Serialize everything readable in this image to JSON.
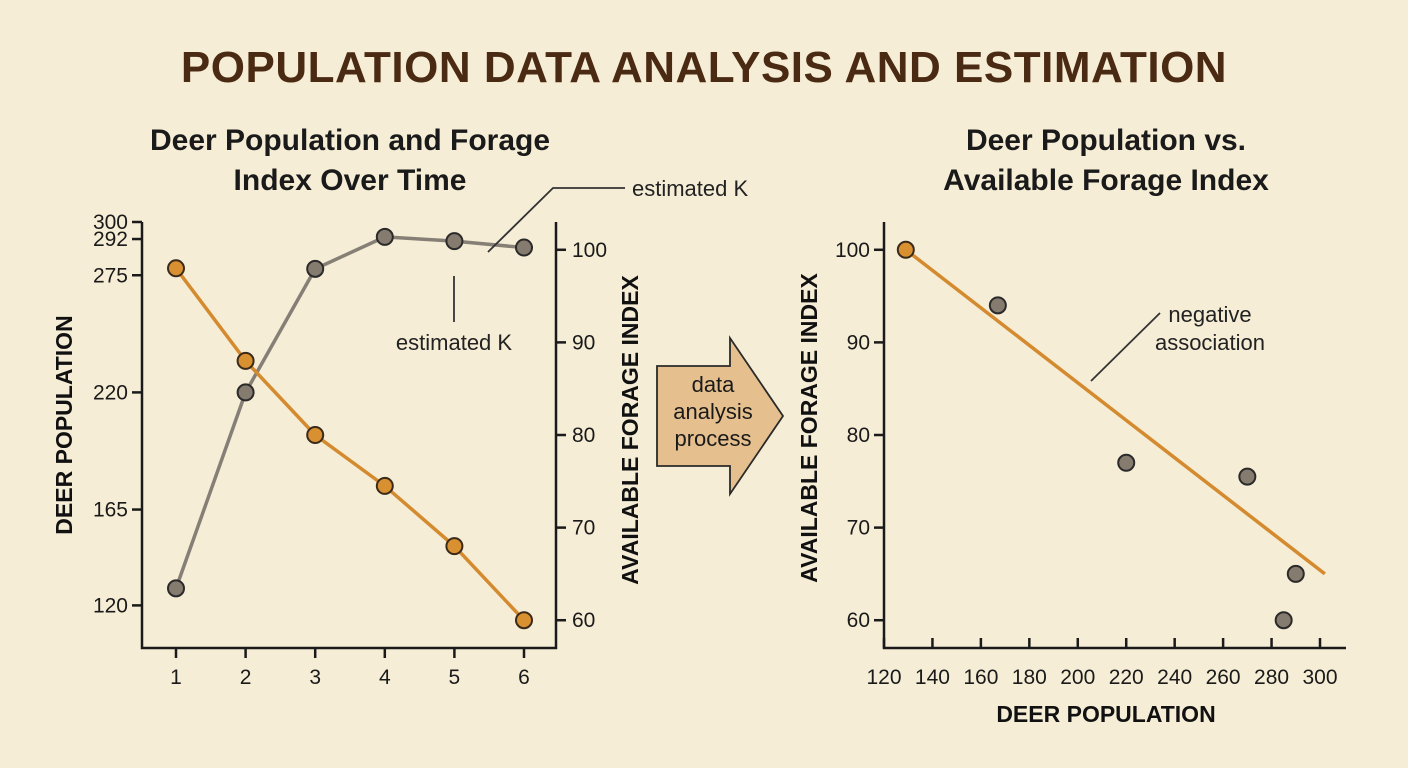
{
  "title": "POPULATION DATA ANALYSIS AND ESTIMATION",
  "arrow": {
    "lines": [
      "data",
      "analysis",
      "process"
    ]
  },
  "chart_data": [
    {
      "type": "line",
      "title": [
        "Deer Population and Forage",
        "Index Over Time"
      ],
      "xlabel": "",
      "categories": [
        1,
        2,
        3,
        4,
        5,
        6
      ],
      "y_left": {
        "label": "DEER POPULATION",
        "ticks": [
          300,
          292,
          275,
          220,
          165,
          120
        ],
        "range": [
          100,
          300
        ]
      },
      "y_right": {
        "label": "AVAILABLE FORAGE INDEX",
        "ticks": [
          100,
          90,
          80,
          70,
          60
        ],
        "range": [
          57,
          103
        ]
      },
      "series": [
        {
          "axis": "left",
          "color": "#867f76",
          "values": [
            128,
            220,
            278,
            293,
            291,
            288
          ]
        },
        {
          "axis": "right",
          "color": "#d48a2e",
          "values": [
            98,
            88,
            80,
            74.5,
            68,
            60
          ]
        }
      ],
      "annotations": [
        "estimated K",
        "estimated K"
      ],
      "grid": false
    },
    {
      "type": "scatter",
      "title": [
        "Deer Population vs.",
        "Available Forage Index"
      ],
      "xlabel": "DEER POPULATION",
      "ylabel": "AVAILABLE FORAGE INDEX",
      "xticks": [
        120,
        140,
        160,
        180,
        200,
        220,
        240,
        260,
        280,
        300
      ],
      "yticks": [
        100,
        90,
        80,
        70,
        60
      ],
      "xlim": [
        120,
        308
      ],
      "ylim": [
        57,
        103
      ],
      "points": [
        {
          "x": 129,
          "y": 100,
          "color": "#d99030"
        },
        {
          "x": 167,
          "y": 94
        },
        {
          "x": 220,
          "y": 77
        },
        {
          "x": 270,
          "y": 75.5
        },
        {
          "x": 290,
          "y": 65
        },
        {
          "x": 285,
          "y": 60
        }
      ],
      "trendline": {
        "x": [
          129,
          302
        ],
        "y": [
          100,
          65
        ],
        "color": "#d48a2e"
      },
      "annotation": [
        "negative",
        "association"
      ],
      "grid": false
    }
  ]
}
